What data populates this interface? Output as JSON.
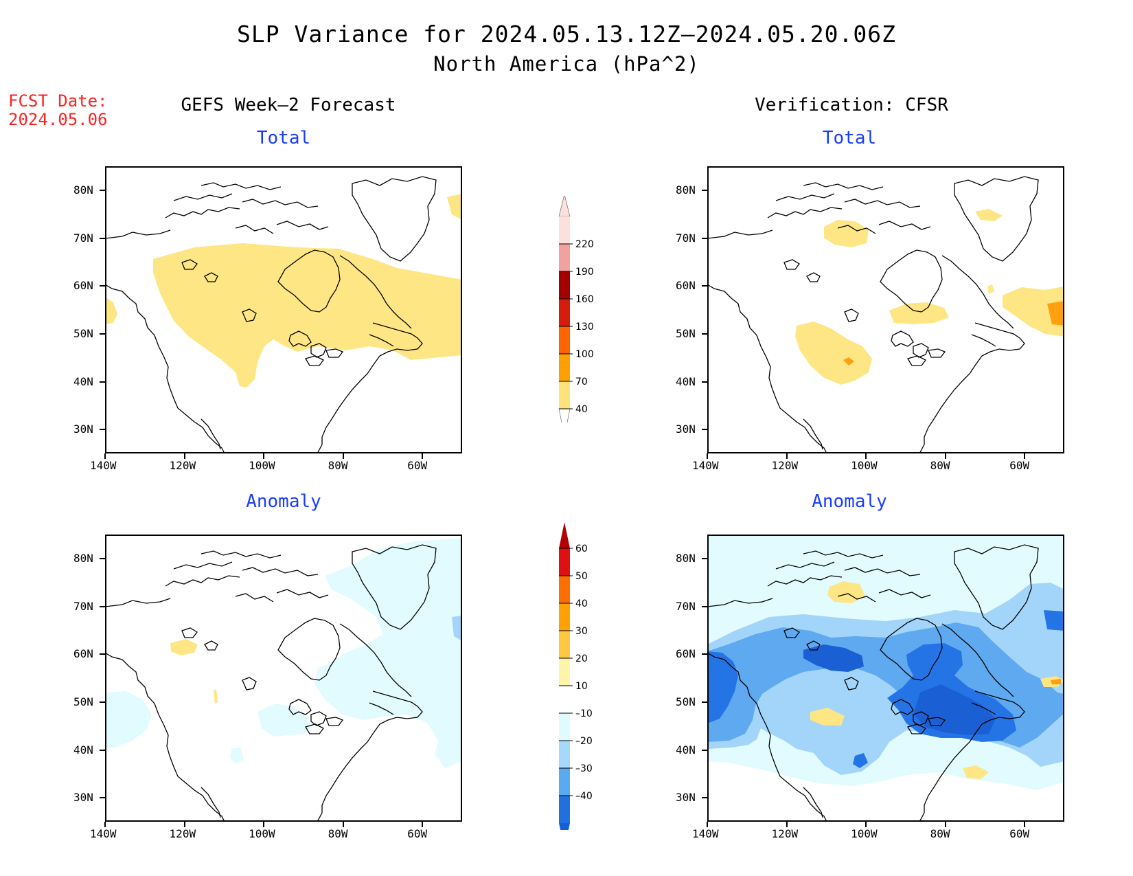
{
  "title": "SLP Variance for 2024.05.13.12Z–2024.05.20.06Z",
  "subtitle": "North America (hPa^2)",
  "fcst_label": "FCST Date:",
  "fcst_date": "2024.05.06",
  "left_column_title": "GEFS Week–2 Forecast",
  "right_column_title": "Verification: CFSR",
  "panel_titles": {
    "total": "Total",
    "anomaly": "Anomaly"
  },
  "axes": {
    "lat_ticks": [
      "80N",
      "70N",
      "60N",
      "50N",
      "40N",
      "30N"
    ],
    "lon_ticks": [
      "140W",
      "120W",
      "100W",
      "80W",
      "60W"
    ],
    "lon_range": [
      -140,
      -50
    ],
    "lat_range": [
      25,
      85
    ]
  },
  "colorbars": {
    "total": {
      "labels": [
        "220",
        "190",
        "160",
        "130",
        "100",
        "70",
        "40"
      ],
      "colors": [
        "#fbe0dc",
        "#f2a0a0",
        "#a40000",
        "#d81c0c",
        "#ff6400",
        "#ffa000",
        "#fde37a"
      ]
    },
    "anomaly": {
      "labels": [
        "60",
        "50",
        "40",
        "30",
        "20",
        "10",
        "–10",
        "–20",
        "–30",
        "–40"
      ],
      "colors": [
        "#b40000",
        "#e01010",
        "#ff6e00",
        "#ffa200",
        "#ffc840",
        "#fff5a8",
        "#ffffff",
        "#e0fbff",
        "#a6d8fb",
        "#5aaaf2",
        "#2070e0",
        "#1260d8"
      ]
    }
  },
  "colors": {
    "yellow": "#fde683",
    "orange": "#ffa010",
    "lightcyan": "#e1fbff",
    "lightblue": "#a3d4f9",
    "medblue": "#5ea9ef",
    "blue": "#2474e6",
    "darkblue": "#1a5fd4"
  }
}
